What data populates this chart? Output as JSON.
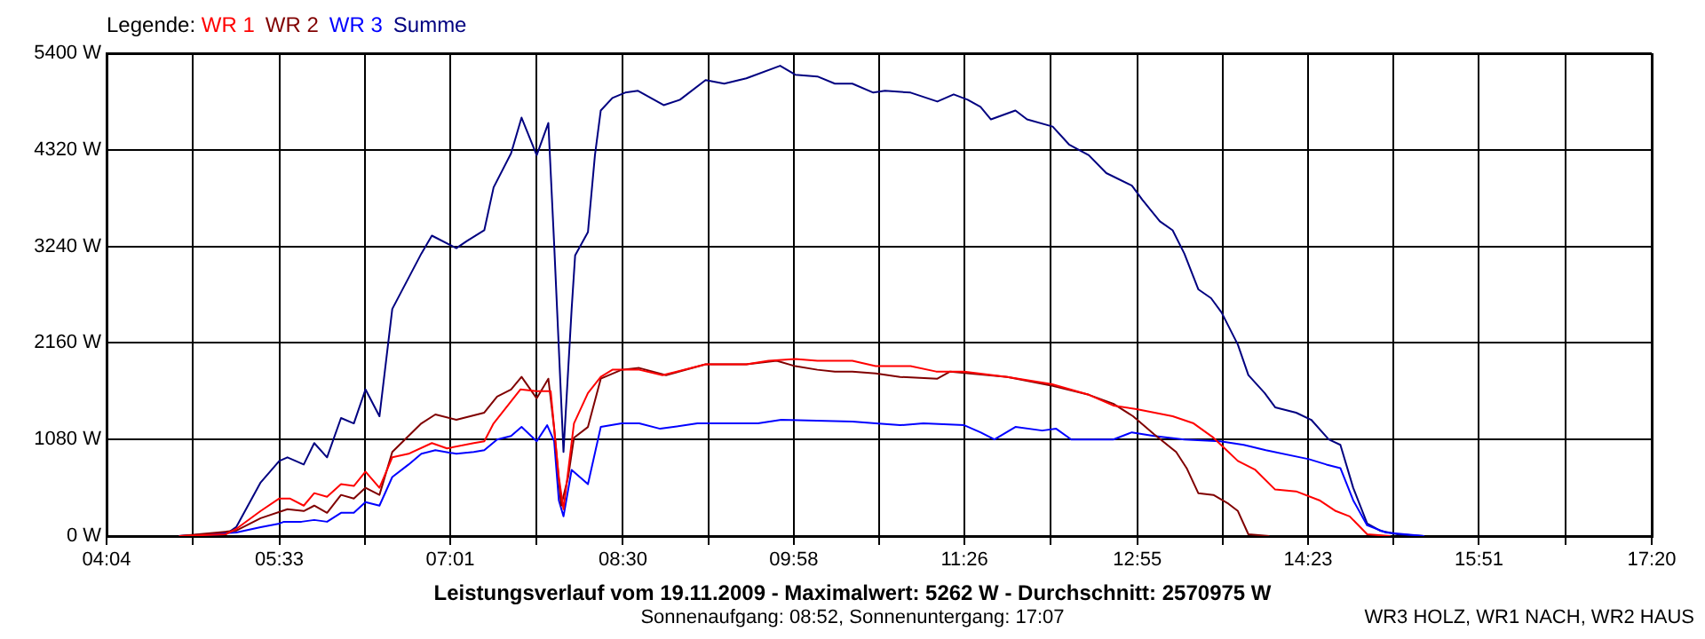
{
  "chart_data": {
    "type": "line",
    "title": "Leistungsverlauf vom 19.11.2009 - Maximalwert: 5262 W - Durchschnitt: 2570975 W",
    "subtitle": "Sonnenaufgang: 08:52, Sonnenuntergang: 17:07",
    "legend_title": "Legende:",
    "legend": "top left",
    "grid": true,
    "annotations": [
      "WR3 HOLZ, WR1 NACH, WR2 HAUS"
    ],
    "xlim": [
      4.067,
      17.333
    ],
    "xticks": [
      {
        "value": 4.067,
        "label": "04:04"
      },
      {
        "value": 4.808,
        "label": null
      },
      {
        "value": 5.55,
        "label": "05:33"
      },
      {
        "value": 6.283,
        "label": null
      },
      {
        "value": 7.017,
        "label": "07:01"
      },
      {
        "value": 7.758,
        "label": null
      },
      {
        "value": 8.5,
        "label": "08:30"
      },
      {
        "value": 9.233,
        "label": null
      },
      {
        "value": 9.967,
        "label": "09:58"
      },
      {
        "value": 10.7,
        "label": null
      },
      {
        "value": 11.433,
        "label": "11:26"
      },
      {
        "value": 12.175,
        "label": null
      },
      {
        "value": 12.917,
        "label": "12:55"
      },
      {
        "value": 13.65,
        "label": null
      },
      {
        "value": 14.383,
        "label": "14:23"
      },
      {
        "value": 15.117,
        "label": null
      },
      {
        "value": 15.85,
        "label": "15:51"
      },
      {
        "value": 16.592,
        "label": null
      },
      {
        "value": 17.333,
        "label": "17:20"
      }
    ],
    "ylim": [
      0,
      5400
    ],
    "yticks": [
      {
        "value": 0,
        "label": "0 W"
      },
      {
        "value": 1080,
        "label": "1080 W"
      },
      {
        "value": 2160,
        "label": "2160 W"
      },
      {
        "value": 3240,
        "label": "3240 W"
      },
      {
        "value": 4320,
        "label": "4320 W"
      },
      {
        "value": 5400,
        "label": "5400 W"
      }
    ],
    "series": [
      {
        "name": "WR 1",
        "color": "#ff0000",
        "x": [
          4.69,
          5.09,
          5.18,
          5.39,
          5.55,
          5.64,
          5.76,
          5.85,
          5.96,
          6.08,
          6.19,
          6.29,
          6.41,
          6.52,
          6.66,
          6.86,
          6.99,
          7.22,
          7.31,
          7.39,
          7.62,
          7.76,
          7.88,
          7.95,
          7.99,
          8.08,
          8.2,
          8.31,
          8.41,
          8.64,
          8.84,
          9.21,
          9.56,
          9.75,
          9.98,
          10.17,
          10.47,
          10.67,
          10.97,
          11.19,
          11.43,
          11.8,
          12.18,
          12.5,
          12.71,
          12.91,
          13.22,
          13.4,
          13.57,
          13.78,
          13.93,
          14.1,
          14.28,
          14.48,
          14.62,
          14.74,
          14.89,
          15.09
        ],
        "values": [
          0,
          20,
          80,
          280,
          420,
          420,
          340,
          480,
          440,
          580,
          560,
          720,
          540,
          880,
          920,
          1040,
          980,
          1040,
          1060,
          1260,
          1640,
          1620,
          1620,
          660,
          300,
          1260,
          1600,
          1780,
          1860,
          1860,
          1800,
          1920,
          1920,
          1960,
          1980,
          1960,
          1960,
          1900,
          1900,
          1840,
          1840,
          1780,
          1700,
          1580,
          1460,
          1420,
          1340,
          1260,
          1100,
          840,
          740,
          520,
          500,
          400,
          280,
          220,
          20,
          0
        ]
      },
      {
        "name": "WR 2",
        "color": "#800000",
        "x": [
          4.69,
          5.18,
          5.39,
          5.62,
          5.76,
          5.85,
          5.96,
          6.08,
          6.19,
          6.29,
          6.41,
          6.52,
          6.77,
          6.89,
          7.07,
          7.31,
          7.42,
          7.54,
          7.63,
          7.76,
          7.86,
          7.91,
          7.97,
          8.03,
          8.08,
          8.2,
          8.31,
          8.49,
          8.64,
          8.87,
          9.21,
          9.56,
          9.82,
          9.98,
          10.17,
          10.32,
          10.47,
          10.67,
          10.88,
          11.2,
          11.31,
          11.8,
          12.19,
          12.5,
          12.71,
          12.88,
          13.06,
          13.25,
          13.34,
          13.44,
          13.57,
          13.7,
          13.78,
          13.87,
          14.05
        ],
        "values": [
          0,
          60,
          200,
          300,
          280,
          340,
          260,
          460,
          420,
          540,
          460,
          940,
          1260,
          1360,
          1300,
          1380,
          1560,
          1640,
          1780,
          1540,
          1760,
          1200,
          340,
          660,
          1100,
          1220,
          1760,
          1860,
          1880,
          1800,
          1920,
          1920,
          1960,
          1900,
          1860,
          1840,
          1840,
          1820,
          1780,
          1760,
          1840,
          1780,
          1680,
          1580,
          1480,
          1340,
          1140,
          940,
          760,
          480,
          460,
          360,
          280,
          20,
          0
        ]
      },
      {
        "name": "WR 3",
        "color": "#0000ff",
        "x": [
          4.69,
          5.18,
          5.39,
          5.55,
          5.59,
          5.74,
          5.85,
          5.96,
          6.08,
          6.19,
          6.29,
          6.41,
          6.52,
          6.66,
          6.77,
          6.89,
          7.07,
          7.22,
          7.31,
          7.42,
          7.54,
          7.63,
          7.76,
          7.85,
          7.91,
          7.95,
          7.99,
          8.06,
          8.2,
          8.31,
          8.49,
          8.64,
          8.82,
          9.14,
          9.66,
          9.86,
          10.47,
          10.67,
          10.88,
          11.08,
          11.43,
          11.57,
          11.69,
          11.87,
          12.1,
          12.22,
          12.35,
          12.71,
          12.87,
          13.06,
          13.32,
          13.63,
          13.83,
          14.02,
          14.39,
          14.54,
          14.66,
          14.77,
          14.89,
          15.05,
          15.38
        ],
        "values": [
          0,
          40,
          100,
          140,
          160,
          160,
          180,
          160,
          260,
          260,
          380,
          340,
          660,
          800,
          920,
          960,
          920,
          940,
          960,
          1080,
          1120,
          1220,
          1060,
          1240,
          1060,
          400,
          220,
          740,
          580,
          1220,
          1260,
          1260,
          1200,
          1260,
          1260,
          1300,
          1280,
          1260,
          1240,
          1260,
          1240,
          1160,
          1080,
          1220,
          1180,
          1200,
          1080,
          1080,
          1160,
          1120,
          1080,
          1060,
          1020,
          960,
          860,
          800,
          760,
          400,
          120,
          40,
          0
        ]
      },
      {
        "name": "Summe",
        "color": "#000080",
        "x": [
          4.69,
          5.09,
          5.18,
          5.39,
          5.55,
          5.62,
          5.76,
          5.85,
          5.96,
          6.08,
          6.19,
          6.29,
          6.41,
          6.52,
          6.77,
          6.86,
          7.07,
          7.16,
          7.31,
          7.39,
          7.54,
          7.63,
          7.76,
          7.86,
          7.91,
          7.99,
          8.06,
          8.09,
          8.2,
          8.26,
          8.31,
          8.41,
          8.52,
          8.63,
          8.85,
          8.99,
          9.21,
          9.37,
          9.56,
          9.85,
          9.98,
          10.17,
          10.32,
          10.47,
          10.65,
          10.75,
          10.97,
          11.2,
          11.34,
          11.46,
          11.57,
          11.66,
          11.87,
          11.97,
          12.19,
          12.33,
          12.5,
          12.65,
          12.87,
          12.96,
          13.11,
          13.22,
          13.32,
          13.44,
          13.55,
          13.64,
          13.78,
          13.87,
          14.01,
          14.1,
          14.28,
          14.41,
          14.56,
          14.66,
          14.77,
          14.89,
          15,
          15.15,
          15.38
        ],
        "values": [
          0,
          20,
          100,
          600,
          840,
          880,
          800,
          1040,
          880,
          1320,
          1260,
          1640,
          1340,
          2540,
          3160,
          3360,
          3220,
          3300,
          3420,
          3900,
          4280,
          4680,
          4260,
          4620,
          3260,
          940,
          2540,
          3140,
          3400,
          4260,
          4760,
          4900,
          4960,
          4980,
          4820,
          4880,
          5100,
          5060,
          5120,
          5260,
          5160,
          5140,
          5060,
          5060,
          4960,
          4980,
          4960,
          4860,
          4940,
          4880,
          4800,
          4660,
          4760,
          4660,
          4580,
          4380,
          4260,
          4060,
          3920,
          3760,
          3520,
          3420,
          3160,
          2760,
          2660,
          2500,
          2140,
          1800,
          1600,
          1440,
          1380,
          1300,
          1080,
          1020,
          540,
          140,
          60,
          20,
          0
        ]
      }
    ]
  }
}
